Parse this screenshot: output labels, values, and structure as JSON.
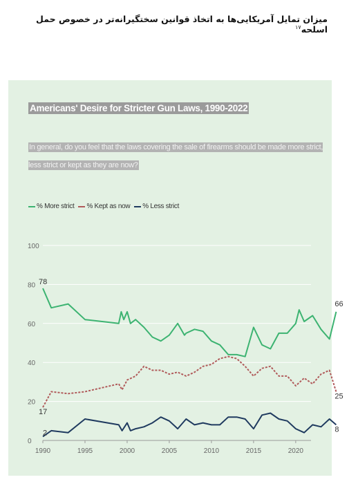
{
  "page": {
    "title": "میزان تمایل آمریکایی‌ها به اتخاذ قوانین سختگیرانه‌تر در خصوص حمل اسلحه",
    "footnote": "۱۷"
  },
  "chart_data": {
    "type": "line",
    "title": "Americans' Desire for Stricter Gun Laws, 1990-2022",
    "subtitle": "In general, do you feel that the laws covering the sale of firearms should be made more strict, less strict or kept as they are now?",
    "xlim": [
      1990,
      2023
    ],
    "ylim": [
      0,
      100
    ],
    "x_ticks": [
      1990,
      1995,
      2000,
      2005,
      2010,
      2015,
      2020
    ],
    "y_ticks": [
      0,
      20,
      40,
      60,
      80,
      100
    ],
    "grid": true,
    "legend_position": "top-left",
    "series": [
      {
        "name": "% More strict",
        "color": "#3cb371",
        "dash": "solid",
        "points": [
          [
            1990,
            78
          ],
          [
            1991,
            68
          ],
          [
            1993,
            70
          ],
          [
            1995,
            62
          ],
          [
            1999,
            60
          ],
          [
            1999.3,
            66
          ],
          [
            1999.6,
            62
          ],
          [
            2000,
            66
          ],
          [
            2000.4,
            60
          ],
          [
            2001,
            62
          ],
          [
            2002,
            58
          ],
          [
            2003,
            53
          ],
          [
            2004,
            51
          ],
          [
            2005,
            54
          ],
          [
            2006,
            60
          ],
          [
            2006.8,
            54
          ],
          [
            2007,
            55
          ],
          [
            2008,
            57
          ],
          [
            2009,
            56
          ],
          [
            2010,
            51
          ],
          [
            2011,
            49
          ],
          [
            2012,
            44
          ],
          [
            2013,
            44
          ],
          [
            2014,
            43
          ],
          [
            2015,
            58
          ],
          [
            2016,
            49
          ],
          [
            2017,
            47
          ],
          [
            2018,
            55
          ],
          [
            2019,
            55
          ],
          [
            2020,
            60
          ],
          [
            2020.4,
            67
          ],
          [
            2021,
            61
          ],
          [
            2022,
            64
          ],
          [
            2023,
            57
          ],
          [
            2024,
            52
          ],
          [
            2024.8,
            66
          ]
        ],
        "labels": [
          {
            "x": 1990,
            "y": 78,
            "text": "78"
          },
          {
            "x": 2024.8,
            "y": 66,
            "text": "66"
          }
        ]
      },
      {
        "name": "% Kept as now",
        "color": "#b05a5a",
        "dash": "dashed",
        "points": [
          [
            1990,
            17
          ],
          [
            1991,
            25
          ],
          [
            1993,
            24
          ],
          [
            1995,
            25
          ],
          [
            1999,
            29
          ],
          [
            1999.4,
            26
          ],
          [
            2000,
            31
          ],
          [
            2001,
            33
          ],
          [
            2002,
            38
          ],
          [
            2003,
            36
          ],
          [
            2004,
            36
          ],
          [
            2005,
            34
          ],
          [
            2006,
            35
          ],
          [
            2007,
            33
          ],
          [
            2008,
            35
          ],
          [
            2009,
            38
          ],
          [
            2010,
            39
          ],
          [
            2011,
            42
          ],
          [
            2012,
            43
          ],
          [
            2013,
            42
          ],
          [
            2014,
            38
          ],
          [
            2015,
            33
          ],
          [
            2016,
            37
          ],
          [
            2017,
            38
          ],
          [
            2018,
            33
          ],
          [
            2019,
            33
          ],
          [
            2020,
            28
          ],
          [
            2021,
            32
          ],
          [
            2022,
            29
          ],
          [
            2023,
            34
          ],
          [
            2024,
            36
          ],
          [
            2024.8,
            25
          ]
        ],
        "labels": [
          {
            "x": 1990,
            "y": 17,
            "text": "17"
          },
          {
            "x": 2024.8,
            "y": 25,
            "text": "25"
          }
        ]
      },
      {
        "name": "% Less strict",
        "color": "#1f3a5f",
        "dash": "solid",
        "points": [
          [
            1990,
            2
          ],
          [
            1991,
            5
          ],
          [
            1993,
            4
          ],
          [
            1995,
            11
          ],
          [
            1999,
            8
          ],
          [
            1999.4,
            5
          ],
          [
            2000,
            9
          ],
          [
            2000.4,
            5
          ],
          [
            2001,
            6
          ],
          [
            2002,
            7
          ],
          [
            2003,
            9
          ],
          [
            2004,
            12
          ],
          [
            2005,
            10
          ],
          [
            2006,
            6
          ],
          [
            2007,
            11
          ],
          [
            2008,
            8
          ],
          [
            2009,
            9
          ],
          [
            2010,
            8
          ],
          [
            2011,
            8
          ],
          [
            2012,
            12
          ],
          [
            2013,
            12
          ],
          [
            2014,
            11
          ],
          [
            2015,
            6
          ],
          [
            2016,
            13
          ],
          [
            2017,
            14
          ],
          [
            2018,
            11
          ],
          [
            2019,
            10
          ],
          [
            2020,
            6
          ],
          [
            2021,
            4
          ],
          [
            2022,
            8
          ],
          [
            2023,
            7
          ],
          [
            2024,
            11
          ],
          [
            2024.8,
            8
          ]
        ],
        "labels": [
          {
            "x": 1990,
            "y": 2,
            "text": "2"
          },
          {
            "x": 2024.8,
            "y": 8,
            "text": "8"
          }
        ]
      }
    ]
  }
}
